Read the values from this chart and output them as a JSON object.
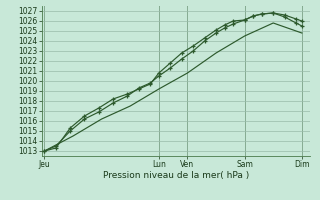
{
  "bg_color": "#c8e8d8",
  "grid_color": "#99bbaa",
  "line_color": "#2d5a2d",
  "marker_color": "#2d5a2d",
  "ylabel_values": [
    1013,
    1014,
    1015,
    1016,
    1017,
    1018,
    1019,
    1020,
    1021,
    1022,
    1023,
    1024,
    1025,
    1026,
    1027
  ],
  "xlabel": "Pression niveau de la mer( hPa )",
  "xtick_labels": [
    "Jeu",
    "Lun",
    "Ven",
    "Sam",
    "Dim"
  ],
  "xtick_positions": [
    0,
    4.0,
    5.0,
    7.0,
    9.0
  ],
  "line1_x": [
    0,
    0.4,
    0.9,
    1.4,
    1.9,
    2.4,
    2.9,
    3.3,
    3.7,
    4.0,
    4.4,
    4.8,
    5.2,
    5.6,
    6.0,
    6.3,
    6.6,
    7.0,
    7.3,
    7.6,
    8.0,
    8.4,
    8.8,
    9.0
  ],
  "line1_y": [
    1013.0,
    1013.5,
    1015.0,
    1016.2,
    1016.9,
    1017.8,
    1018.5,
    1019.3,
    1019.8,
    1020.5,
    1021.3,
    1022.2,
    1023.0,
    1024.0,
    1024.8,
    1025.3,
    1025.7,
    1026.1,
    1026.5,
    1026.7,
    1026.8,
    1026.6,
    1026.2,
    1026.0
  ],
  "line2_x": [
    0,
    0.4,
    0.9,
    1.4,
    1.9,
    2.4,
    2.9,
    3.3,
    3.7,
    4.0,
    4.4,
    4.8,
    5.2,
    5.6,
    6.0,
    6.3,
    6.6,
    7.0,
    7.3,
    7.6,
    8.0,
    8.4,
    8.8,
    9.0
  ],
  "line2_y": [
    1013.0,
    1013.3,
    1015.3,
    1016.5,
    1017.3,
    1018.2,
    1018.7,
    1019.2,
    1019.7,
    1020.8,
    1021.8,
    1022.8,
    1023.5,
    1024.3,
    1025.1,
    1025.6,
    1026.0,
    1026.1,
    1026.5,
    1026.7,
    1026.8,
    1026.4,
    1025.8,
    1025.5
  ],
  "line3_x": [
    0,
    1.0,
    2.0,
    3.0,
    4.0,
    5.0,
    6.0,
    7.0,
    8.0,
    9.0
  ],
  "line3_y": [
    1013.0,
    1014.5,
    1016.2,
    1017.5,
    1019.2,
    1020.8,
    1022.8,
    1024.5,
    1025.8,
    1024.8
  ],
  "ylim": [
    1012.5,
    1027.5
  ],
  "xlim": [
    -0.1,
    9.3
  ],
  "tick_fontsize": 5.5,
  "xlabel_fontsize": 6.5
}
